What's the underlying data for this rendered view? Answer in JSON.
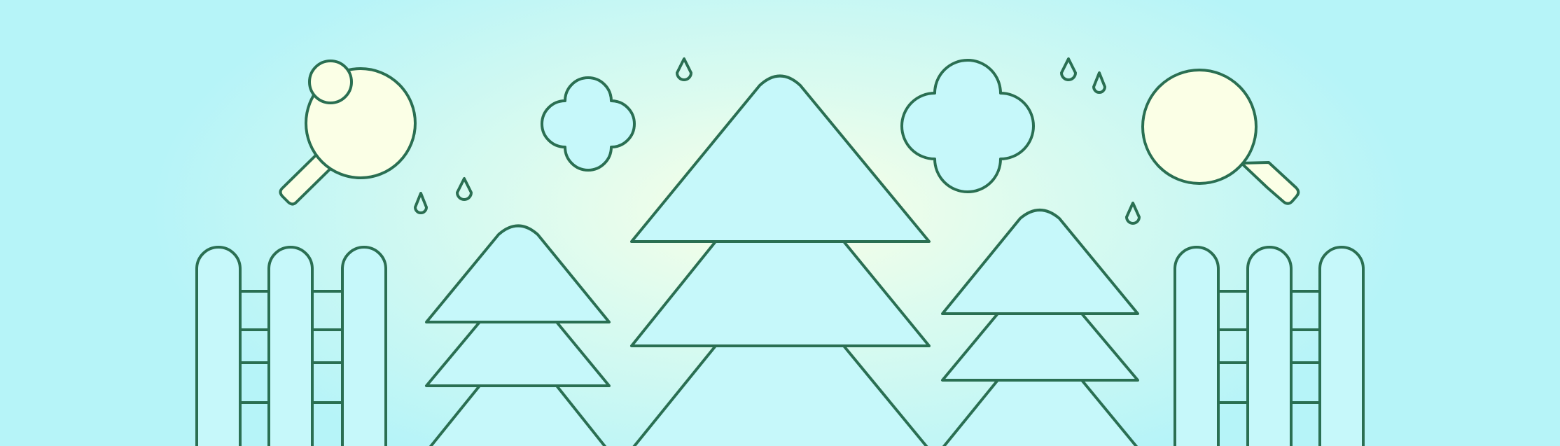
{
  "scene": {
    "description_free": true,
    "colors": {
      "sky_edge": "#b6f4f8",
      "sky_center": "#fbffe6",
      "outline": "#2a6f52",
      "shape_fill": "#c6f8fa",
      "lens_fill": "#fbffe6"
    },
    "icons": [
      "magnifier-icon-left",
      "magnifier-icon-right",
      "cloud-icon-left",
      "cloud-icon-right",
      "tree-icon-left",
      "tree-icon-center",
      "tree-icon-right",
      "fence-icon-left",
      "fence-icon-right",
      "raindrop-icon"
    ]
  }
}
